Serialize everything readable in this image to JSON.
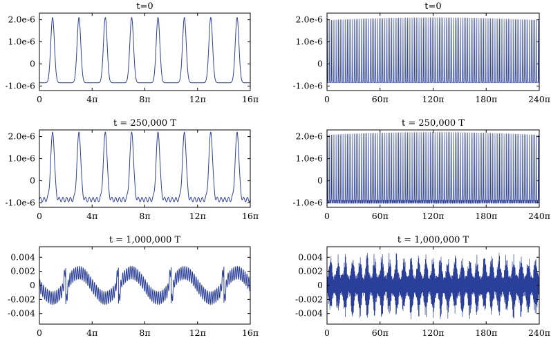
{
  "chart_data": [
    {
      "type": "line",
      "title": "t=0",
      "xticks": [
        "0",
        "4π",
        "8π",
        "12π",
        "16π"
      ],
      "yticks": [
        "2.0e-6",
        "1.0e-6",
        "0",
        "-1.0e-6"
      ],
      "ytick_values": [
        2e-06,
        1e-06,
        0,
        -1e-06
      ],
      "xlim": [
        0,
        16
      ],
      "ylim": [
        -1.2e-06,
        2.3e-06
      ],
      "x_unit": "π",
      "series": [
        {
          "kind": "smooth",
          "periods": 8,
          "min": -8.5e-07,
          "max": 2.1e-06,
          "ripple": 0,
          "ripple_cycles": 0
        }
      ]
    },
    {
      "type": "line",
      "title": "t=0",
      "xticks": [
        "0",
        "60π",
        "120π",
        "180π",
        "240π"
      ],
      "yticks": [
        "2.0e-6",
        "1.0e-6",
        "0",
        "-1.0e-6"
      ],
      "ytick_values": [
        2e-06,
        1e-06,
        0,
        -1e-06
      ],
      "xlim": [
        0,
        240
      ],
      "ylim": [
        -1.2e-06,
        2.3e-06
      ],
      "x_unit": "π",
      "series": [
        {
          "kind": "smooth",
          "periods": 120,
          "min": -8.5e-07,
          "max": 2.1e-06,
          "ripple": 0,
          "ripple_cycles": 0
        }
      ]
    },
    {
      "type": "line",
      "title": "t = 250,000 T",
      "xticks": [
        "0",
        "4π",
        "8π",
        "12π",
        "16π"
      ],
      "yticks": [
        "2.0e-6",
        "1.0e-6",
        "0",
        "-1.0e-6"
      ],
      "ytick_values": [
        2e-06,
        1e-06,
        0,
        -1e-06
      ],
      "xlim": [
        0,
        16
      ],
      "ylim": [
        -1.2e-06,
        2.3e-06
      ],
      "x_unit": "π",
      "series": [
        {
          "kind": "smooth",
          "periods": 8,
          "min": -8.5e-07,
          "max": 2.2e-06,
          "ripple": 1e-07,
          "ripple_cycles": 7
        }
      ]
    },
    {
      "type": "line",
      "title": "t = 250,000 T",
      "xticks": [
        "0",
        "60π",
        "120π",
        "180π",
        "240π"
      ],
      "yticks": [
        "2.0e-6",
        "1.0e-6",
        "0",
        "-1.0e-6"
      ],
      "ytick_values": [
        2e-06,
        1e-06,
        0,
        -1e-06
      ],
      "xlim": [
        0,
        240
      ],
      "ylim": [
        -1.2e-06,
        2.3e-06
      ],
      "x_unit": "π",
      "series": [
        {
          "kind": "smooth",
          "periods": 120,
          "min": -9.5e-07,
          "max": 2.2e-06,
          "ripple": 8e-08,
          "ripple_cycles": 7
        }
      ]
    },
    {
      "type": "line",
      "title": "t = 1,000,000 T",
      "xticks": [
        "0",
        "4π",
        "8π",
        "12π",
        "16π"
      ],
      "yticks": [
        "0.004",
        "0.002",
        "0",
        "-0.002",
        "-0.004"
      ],
      "ytick_values": [
        0.004,
        0.002,
        0,
        -0.002,
        -0.004
      ],
      "xlim": [
        0,
        16
      ],
      "ylim": [
        -0.0055,
        0.0055
      ],
      "x_unit": "π",
      "series": [
        {
          "kind": "sawtooth",
          "periods": 4,
          "amplitude": 0.0018,
          "fast_cycles": 112,
          "fast_amplitude": 0.0009,
          "spike_amplitude": 0.0045
        }
      ]
    },
    {
      "type": "line",
      "title": "t = 1,000,000 T",
      "xticks": [
        "0",
        "60π",
        "120π",
        "180π",
        "240π"
      ],
      "yticks": [
        "0.004",
        "0.002",
        "0",
        "-0.002",
        "-0.004"
      ],
      "ytick_values": [
        0.004,
        0.002,
        0,
        -0.002,
        -0.004
      ],
      "xlim": [
        0,
        240
      ],
      "ylim": [
        -0.0055,
        0.0055
      ],
      "x_unit": "π",
      "series": [
        {
          "kind": "band",
          "envelope_min": 0.0015,
          "envelope_max": 0.0048,
          "envelope_cycles": 29
        }
      ]
    }
  ],
  "line_color": "#2a3f9a"
}
